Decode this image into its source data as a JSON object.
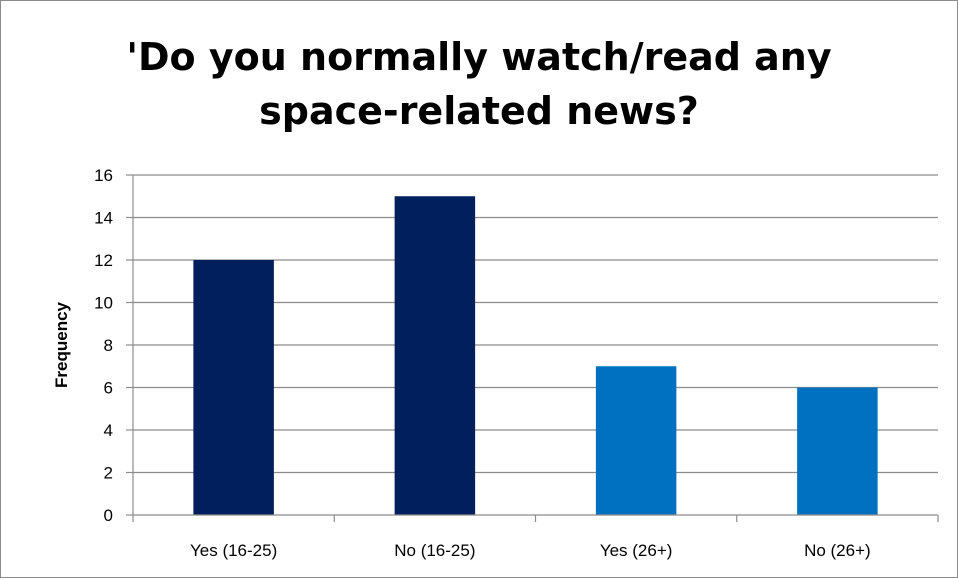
{
  "chart_data": {
    "type": "bar",
    "title_lines": [
      "'Do you normally watch/read any",
      "space-related news?"
    ],
    "xlabel": "",
    "ylabel": "Frequency",
    "categories": [
      "Yes (16-25)",
      "No (16-25)",
      "Yes (26+)",
      "No (26+)"
    ],
    "values": [
      12,
      15,
      7,
      6
    ],
    "bar_colors": [
      "#001f5c",
      "#001f5c",
      "#0070c0",
      "#0070c0"
    ],
    "ylim": [
      0,
      16
    ],
    "yticks": [
      "0",
      "2",
      "4",
      "6",
      "8",
      "10",
      "12",
      "14",
      "16"
    ],
    "grid": true,
    "gridline_color": "#8c8c8c"
  }
}
